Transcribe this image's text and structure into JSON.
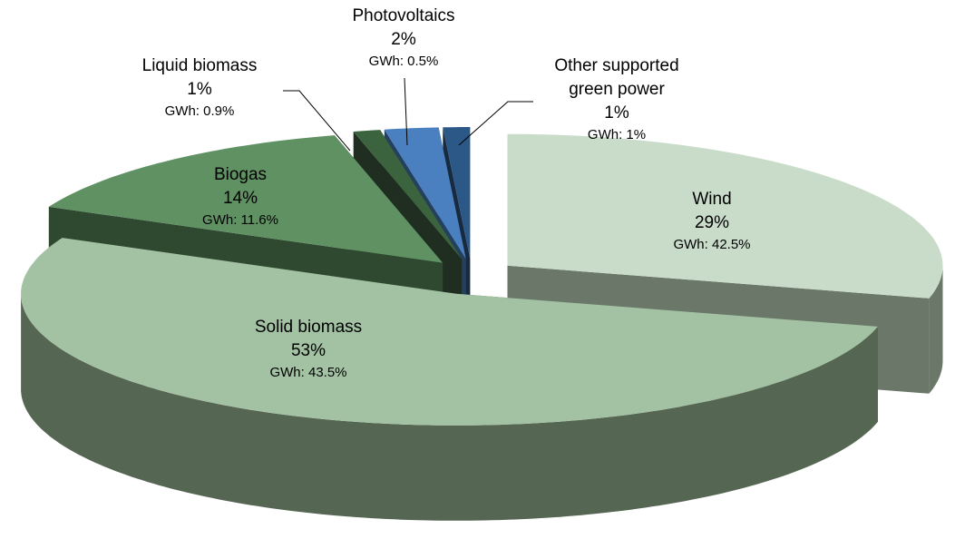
{
  "chart_data": {
    "type": "pie3d",
    "categories": [
      "Wind",
      "Solid biomass",
      "Biogas",
      "Liquid biomass",
      "Photovoltaics",
      "Other supported green power"
    ],
    "values": [
      29,
      53,
      14,
      1,
      2,
      1
    ],
    "value_labels": [
      "29%",
      "53%",
      "14%",
      "1%",
      "2%",
      "1%"
    ],
    "gwh_labels": [
      "GWh: 42.5%",
      "GWh: 43.5%",
      "GWh: 11.6%",
      "GWh: 0.9%",
      "GWh: 0.5%",
      "GWh: 1%"
    ],
    "colors": [
      "#c8dcc9",
      "#a3c2a4",
      "#5f9163",
      "#3b633e",
      "#4b80c0",
      "#2c5887"
    ],
    "side_colors": [
      "#6a7769",
      "#556653",
      "#2f4931",
      "#1f2e20",
      "#24405f",
      "#172a40"
    ]
  }
}
